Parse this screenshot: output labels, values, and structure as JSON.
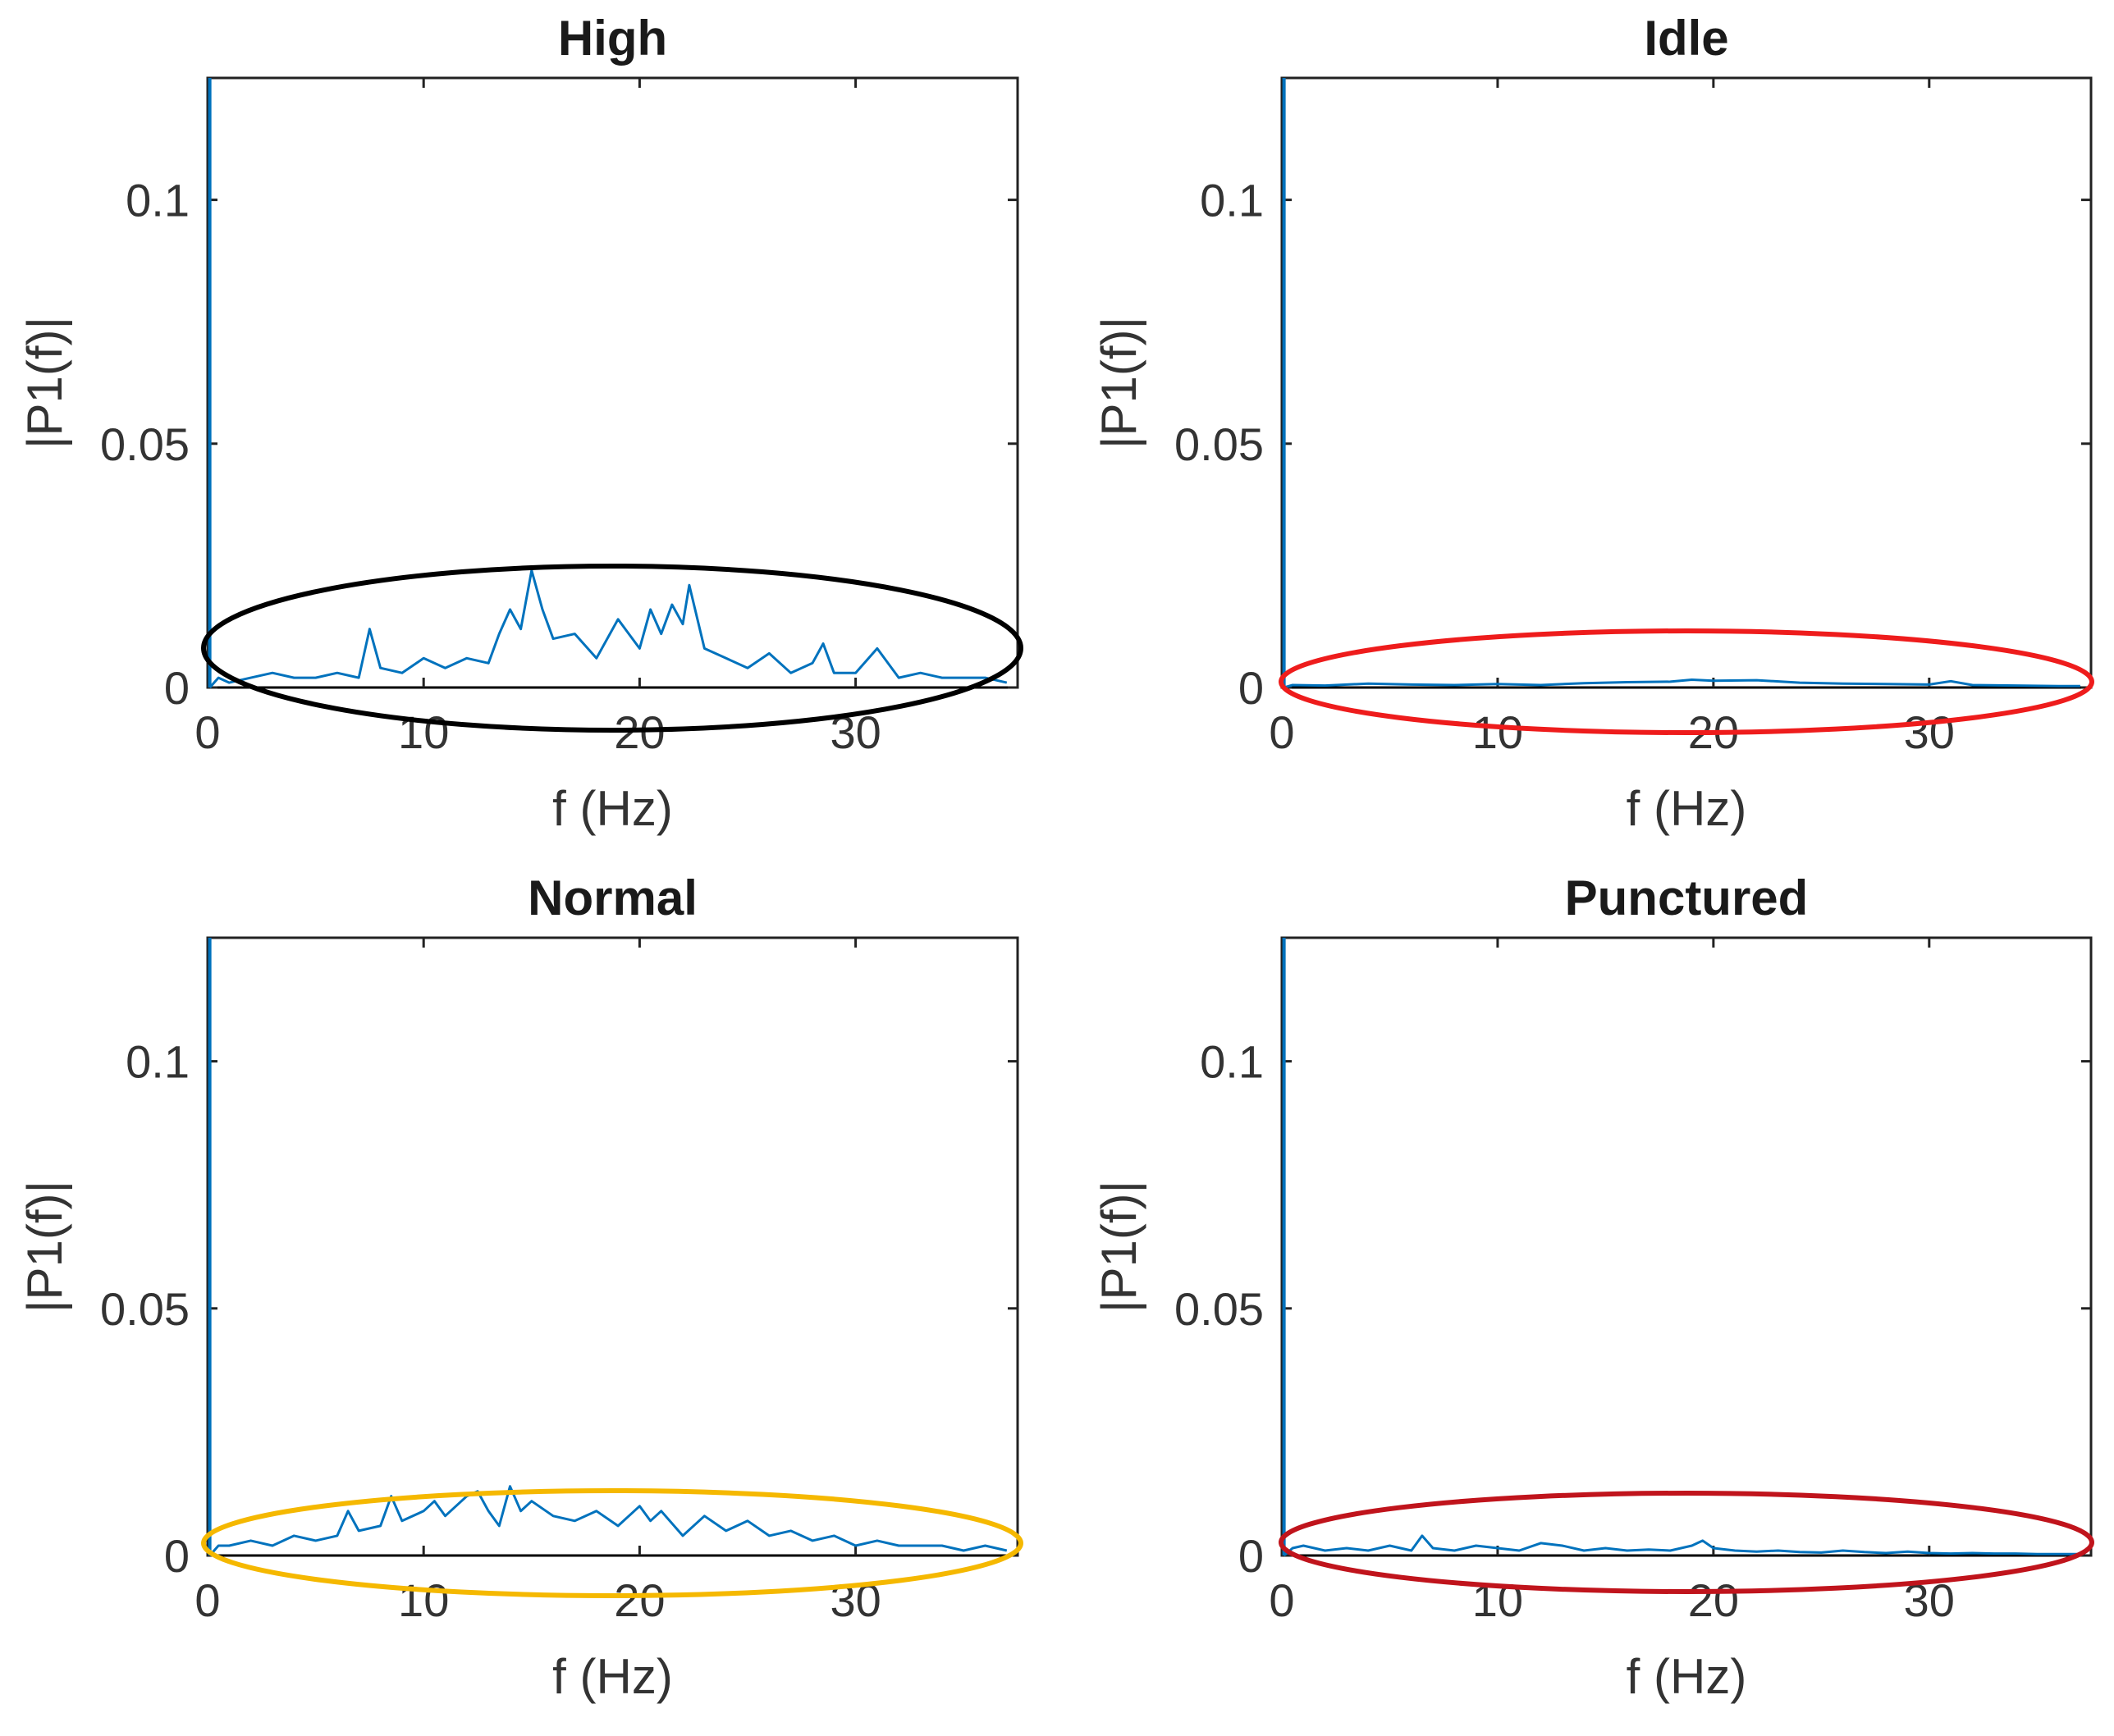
{
  "chart_data": [
    {
      "type": "line",
      "title": "High",
      "xlabel": "f (Hz)",
      "ylabel": "|P1(f)|",
      "xlim": [
        0,
        37.5
      ],
      "ylim": [
        0,
        0.125
      ],
      "xticks": [
        0,
        10,
        20,
        30
      ],
      "yticks": [
        0,
        0.05,
        0.1
      ],
      "ytick_labels": [
        "0",
        "0.05",
        "0.1"
      ],
      "highlight_color": "#000000",
      "dc_spike": 0.125,
      "x": [
        0.5,
        1,
        2,
        3,
        4,
        5,
        6,
        7,
        7.5,
        8,
        9,
        10,
        11,
        12,
        13,
        13.5,
        14,
        14.5,
        15,
        15.5,
        16,
        17,
        18,
        19,
        20,
        20.5,
        21,
        21.5,
        22,
        22.3,
        23,
        24,
        25,
        26,
        27,
        28,
        28.5,
        29,
        30,
        31,
        32,
        33,
        34,
        35,
        36,
        37
      ],
      "values": [
        0.002,
        0.001,
        0.002,
        0.003,
        0.002,
        0.002,
        0.003,
        0.002,
        0.012,
        0.004,
        0.003,
        0.006,
        0.004,
        0.006,
        0.005,
        0.011,
        0.016,
        0.012,
        0.024,
        0.016,
        0.01,
        0.011,
        0.006,
        0.014,
        0.008,
        0.016,
        0.011,
        0.017,
        0.013,
        0.021,
        0.008,
        0.006,
        0.004,
        0.007,
        0.003,
        0.005,
        0.009,
        0.003,
        0.003,
        0.008,
        0.002,
        0.003,
        0.002,
        0.002,
        0.002,
        0.001
      ]
    },
    {
      "type": "line",
      "title": "Idle",
      "xlabel": "f (Hz)",
      "ylabel": "|P1(f)|",
      "xlim": [
        0,
        37.5
      ],
      "ylim": [
        0,
        0.125
      ],
      "xticks": [
        0,
        10,
        20,
        30
      ],
      "yticks": [
        0,
        0.05,
        0.1
      ],
      "ytick_labels": [
        "0",
        "0.05",
        "0.1"
      ],
      "highlight_color": "#EE1C1C",
      "dc_spike": 0.125,
      "x": [
        0.5,
        2,
        4,
        6,
        8,
        10,
        12,
        14,
        16,
        18,
        19,
        20,
        22,
        24,
        26,
        28,
        30,
        31,
        32,
        34,
        36,
        37
      ],
      "values": [
        0.0005,
        0.0004,
        0.0008,
        0.0006,
        0.0005,
        0.0007,
        0.0005,
        0.0009,
        0.0011,
        0.0012,
        0.0016,
        0.0014,
        0.0015,
        0.001,
        0.0008,
        0.0007,
        0.0006,
        0.0013,
        0.0005,
        0.0004,
        0.0003,
        0.0003
      ]
    },
    {
      "type": "line",
      "title": "Normal",
      "xlabel": "f (Hz)",
      "ylabel": "|P1(f)|",
      "xlim": [
        0,
        37.5
      ],
      "ylim": [
        0,
        0.125
      ],
      "xticks": [
        0,
        10,
        20,
        30
      ],
      "yticks": [
        0,
        0.05,
        0.1
      ],
      "ytick_labels": [
        "0",
        "0.05",
        "0.1"
      ],
      "highlight_color": "#F5B800",
      "dc_spike": 0.125,
      "x": [
        0.5,
        1,
        2,
        3,
        4,
        5,
        6,
        6.5,
        7,
        8,
        8.5,
        9,
        10,
        10.5,
        11,
        12,
        12.5,
        13,
        13.5,
        14,
        14.5,
        15,
        16,
        17,
        18,
        19,
        20,
        20.5,
        21,
        22,
        23,
        24,
        25,
        26,
        27,
        28,
        29,
        30,
        31,
        32,
        33,
        34,
        35,
        36,
        37
      ],
      "values": [
        0.002,
        0.002,
        0.003,
        0.002,
        0.004,
        0.003,
        0.004,
        0.009,
        0.005,
        0.006,
        0.012,
        0.007,
        0.009,
        0.011,
        0.008,
        0.012,
        0.013,
        0.009,
        0.006,
        0.014,
        0.009,
        0.011,
        0.008,
        0.007,
        0.009,
        0.006,
        0.01,
        0.007,
        0.009,
        0.004,
        0.008,
        0.005,
        0.007,
        0.004,
        0.005,
        0.003,
        0.004,
        0.002,
        0.003,
        0.002,
        0.002,
        0.002,
        0.001,
        0.002,
        0.001
      ]
    },
    {
      "type": "line",
      "title": "Punctured",
      "xlabel": "f (Hz)",
      "ylabel": "|P1(f)|",
      "xlim": [
        0,
        37.5
      ],
      "ylim": [
        0,
        0.125
      ],
      "xticks": [
        0,
        10,
        20,
        30
      ],
      "yticks": [
        0,
        0.05,
        0.1
      ],
      "ytick_labels": [
        "0",
        "0.05",
        "0.1"
      ],
      "highlight_color": "#C0141C",
      "dc_spike": 0.125,
      "x": [
        0.5,
        1,
        2,
        3,
        4,
        5,
        6,
        6.5,
        7,
        8,
        9,
        10,
        11,
        12,
        13,
        14,
        15,
        16,
        17,
        18,
        19,
        19.5,
        20,
        21,
        22,
        23,
        24,
        25,
        26,
        27,
        28,
        29,
        30,
        31,
        32,
        33,
        34,
        35,
        36,
        37
      ],
      "values": [
        0.0015,
        0.002,
        0.001,
        0.0015,
        0.001,
        0.002,
        0.001,
        0.004,
        0.0015,
        0.001,
        0.002,
        0.0015,
        0.001,
        0.0025,
        0.002,
        0.001,
        0.0015,
        0.001,
        0.0012,
        0.001,
        0.002,
        0.003,
        0.0015,
        0.001,
        0.0008,
        0.001,
        0.0007,
        0.0006,
        0.001,
        0.0007,
        0.0005,
        0.0008,
        0.0005,
        0.0004,
        0.0005,
        0.0004,
        0.0004,
        0.0003,
        0.0003,
        0.0003
      ]
    }
  ]
}
